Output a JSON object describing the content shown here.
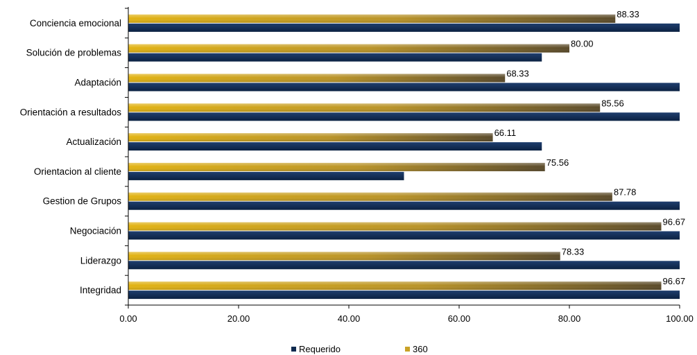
{
  "chart_data": {
    "type": "bar",
    "orientation": "horizontal",
    "categories": [
      "Conciencia emocional",
      "Solución de problemas",
      "Adaptación",
      "Orientación a resultados",
      "Actualización",
      "Orientacion al cliente",
      "Gestion de Grupos",
      "Negociación",
      "Liderazgo",
      "Integridad"
    ],
    "series": [
      {
        "name": "360",
        "color": "#c9a227",
        "values": [
          88.33,
          80.0,
          68.33,
          85.56,
          66.11,
          75.56,
          87.78,
          96.67,
          78.33,
          96.67
        ],
        "labels": [
          "88.33",
          "80.00",
          "68.33",
          "85.56",
          "66.11",
          "75.56",
          "87.78",
          "96.67",
          "78.33",
          "96.67"
        ]
      },
      {
        "name": "Requerido",
        "color": "#0f2a4f",
        "values": [
          100,
          75,
          100,
          100,
          75,
          50,
          100,
          100,
          100,
          100
        ]
      }
    ],
    "xlim": [
      0,
      100
    ],
    "xticks": [
      "0.00",
      "20.00",
      "40.00",
      "60.00",
      "80.00",
      "100.00"
    ],
    "xtick_values": [
      0,
      20,
      40,
      60,
      80,
      100
    ],
    "grid": false,
    "legend_position": "bottom",
    "title": "",
    "xlabel": "",
    "ylabel": ""
  },
  "legend": {
    "requerido": "Requerido",
    "s360": "360"
  }
}
